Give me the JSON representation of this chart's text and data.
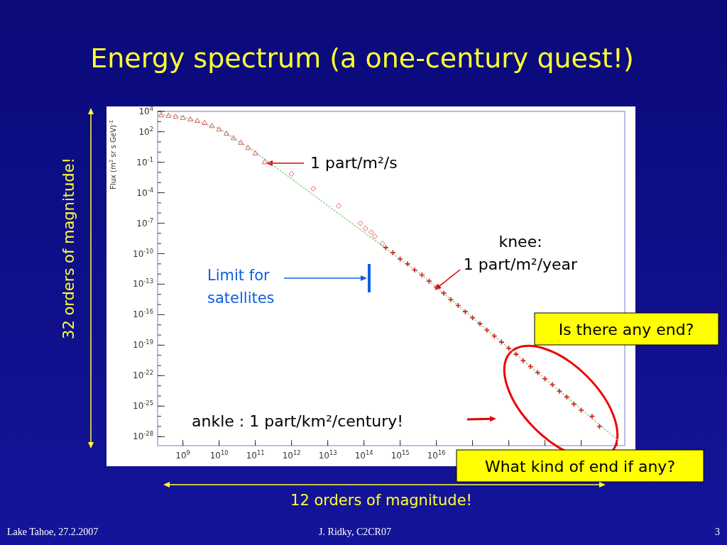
{
  "chart_data": {
    "type": "scatter",
    "title": "Energy spectrum (a one-century quest!)",
    "ylabel": "Flux (m$^{2}$ sr s GeV)$^{-1}$",
    "log": "xy",
    "xlim": [
      200000000.0,
      1.6e+21
    ],
    "ylim": [
      1.3e-29,
      10000.0
    ],
    "xticks": [
      {
        "value": 1000000000.0,
        "label": "10$^{9}$"
      },
      {
        "value": 10000000000.0,
        "label": "10$^{10}$"
      },
      {
        "value": 100000000000.0,
        "label": "10$^{11}$"
      },
      {
        "value": 1000000000000.0,
        "label": "10$^{12}$"
      },
      {
        "value": 10000000000000.0,
        "label": "10$^{13}$"
      },
      {
        "value": 100000000000000.0,
        "label": "10$^{14}$"
      },
      {
        "value": 1000000000000000.0,
        "label": "10$^{15}$"
      },
      {
        "value": 1e+16,
        "label": "10$^{16}$"
      },
      {
        "value": 1e+17,
        "label": null
      },
      {
        "value": 1e+18,
        "label": null
      },
      {
        "value": 1e+19,
        "label": null
      },
      {
        "value": 1e+20,
        "label": null
      }
    ],
    "yticks": [
      {
        "value": 10000.0,
        "label": "10$^{4}$"
      },
      {
        "value": 100.0,
        "label": "10$^{2}$"
      },
      {
        "value": 0.1,
        "label": "10$^{-1}$"
      },
      {
        "value": 0.0001,
        "label": "10$^{-4}$"
      },
      {
        "value": 1e-07,
        "label": "10$^{-7}$"
      },
      {
        "value": 1e-10,
        "label": "10$^{-10}$"
      },
      {
        "value": 1e-13,
        "label": "10$^{-13}$"
      },
      {
        "value": 1e-16,
        "label": "10$^{-16}$"
      },
      {
        "value": 1e-19,
        "label": "10$^{-19}$"
      },
      {
        "value": 1e-22,
        "label": "10$^{-22}$"
      },
      {
        "value": 1e-25,
        "label": "10$^{-25}$"
      },
      {
        "value": 1e-28,
        "label": "10$^{-28}$"
      }
    ],
    "series": [
      {
        "type": "line",
        "color": "#8fd18f",
        "line_style": "dotted",
        "marker": "none",
        "x": [
          200000000.0,
          1000000000.0,
          10000000000.0,
          100000000000.0,
          1000000000000000.0,
          4000000000000000.0,
          1e+21
        ],
        "values": [
          5000,
          3000,
          200,
          1,
          3e-11,
          8e-13,
          5e-29
        ]
      },
      {
        "color": "#e06060",
        "marker": "triangle",
        "x": [
          250000000.0,
          400000000.0,
          630000000.0,
          1000000000.0,
          1600000000.0,
          2500000000.0,
          4000000000.0,
          6300000000.0,
          10000000000.0,
          16000000000.0,
          25000000000.0,
          40000000000.0,
          63000000000.0,
          100000000000.0,
          180000000000.0
        ],
        "values": [
          4500,
          4000,
          3200,
          2500,
          1800,
          1260,
          800,
          400,
          180,
          70,
          25,
          9,
          2.8,
          0.8,
          0.11
        ]
      },
      {
        "color": "#e06060",
        "marker": "diamond",
        "x": [
          1000000000000.0,
          4000000000000.0,
          20000000000000.0,
          80000000000000.0,
          110000000000000.0,
          160000000000000.0,
          200000000000000.0,
          320000000000000.0
        ],
        "values": [
          0.007,
          0.00025,
          5e-06,
          1e-07,
          3e-08,
          1.3e-08,
          5e-09,
          1e-09
        ]
      },
      {
        "color": "#d42020",
        "marker": "cross",
        "x": [
          400000000000000.0,
          630000000000000.0,
          1000000000000000.0,
          1600000000000000.0,
          2500000000000000.0,
          4000000000000000.0,
          6300000000000000.0,
          1e+16,
          1.6e+16,
          2.5e+16,
          4e+16,
          6.3e+16,
          1e+17,
          1.6e+17,
          2.5e+17,
          4e+17,
          6.3e+17,
          1e+18,
          1.6e+18,
          2.5e+18,
          4e+18,
          6.3e+18,
          1e+19,
          1.6e+19,
          2.5e+19,
          4e+19,
          6.3e+19,
          1e+20,
          2e+20,
          3.2e+20
        ],
        "values": [
          4e-10,
          1.3e-10,
          3e-11,
          1e-11,
          2.5e-12,
          8e-13,
          2e-13,
          5e-14,
          1.3e-14,
          3e-15,
          8e-16,
          2e-16,
          5e-17,
          1.3e-17,
          3e-18,
          8e-19,
          2e-19,
          5e-20,
          1.3e-20,
          3e-21,
          8e-22,
          2e-22,
          5e-23,
          1.3e-23,
          3e-24,
          8e-25,
          1.6e-25,
          4e-26,
          1e-26,
          1e-27
        ]
      }
    ],
    "annotations": [
      {
        "text": "1 part/m²/s",
        "x": 200000000000.0,
        "y": 0.08
      },
      {
        "text": "knee:\n1 part/m²/year",
        "x": 9000000000000000.0,
        "y": 2.8e-14
      },
      "Limit for\nsatellites",
      "ankle : 1 part/km²/century!",
      "Is there any end?",
      "What kind of end if any?",
      "32 orders of magnitude!",
      "12 orders of magnitude!",
      "Lake Tahoe, 27.2.2007",
      "J. Ridky, C2CR07",
      "3"
    ]
  }
}
